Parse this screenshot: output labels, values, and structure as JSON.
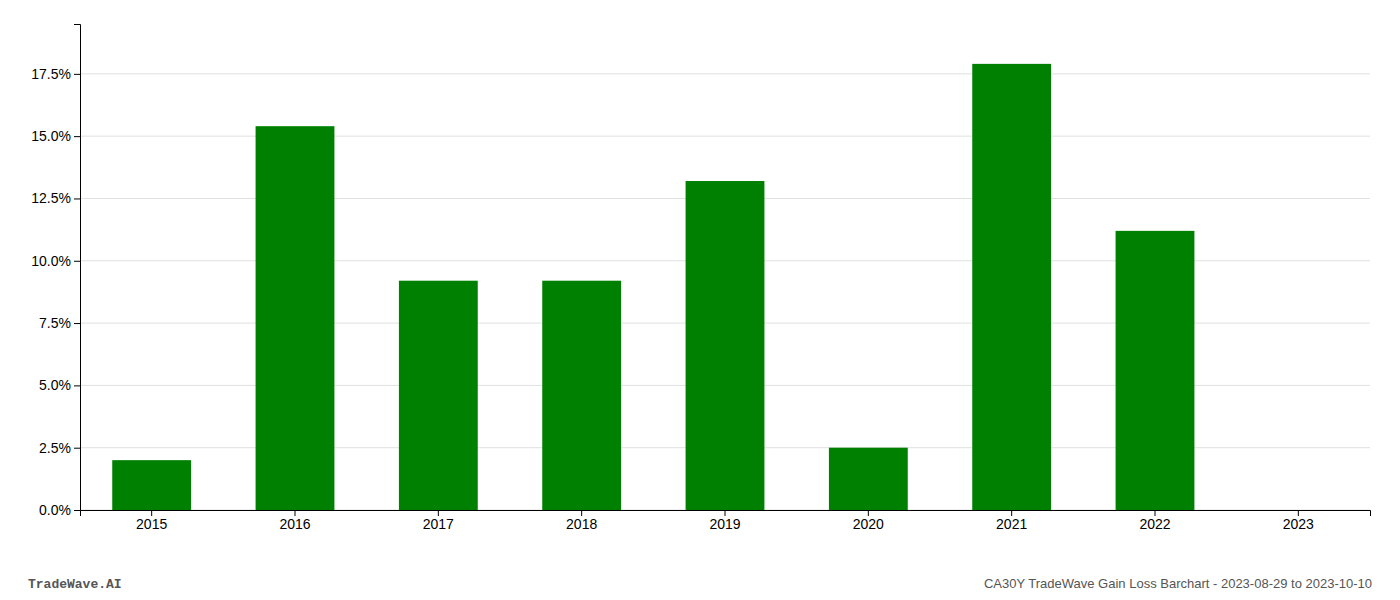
{
  "chart_data": {
    "type": "bar",
    "categories": [
      "2015",
      "2016",
      "2017",
      "2018",
      "2019",
      "2020",
      "2021",
      "2022",
      "2023"
    ],
    "values": [
      0.02,
      0.154,
      0.092,
      0.092,
      0.132,
      0.025,
      0.179,
      0.112,
      0.0
    ],
    "color": "#008000",
    "ylim": [
      0,
      0.195
    ],
    "yticks": [
      {
        "value": 0.0,
        "label": "0.0%"
      },
      {
        "value": 0.025,
        "label": "2.5%"
      },
      {
        "value": 0.05,
        "label": "5.0%"
      },
      {
        "value": 0.075,
        "label": "7.5%"
      },
      {
        "value": 0.1,
        "label": "10.0%"
      },
      {
        "value": 0.125,
        "label": "12.5%"
      },
      {
        "value": 0.15,
        "label": "15.0%"
      },
      {
        "value": 0.175,
        "label": "17.5%"
      }
    ],
    "grid": true,
    "annotations": [
      "TradeWave.AI",
      "CA30Y TradeWave Gain Loss Barchart - 2023-08-29 to 2023-10-10"
    ]
  }
}
